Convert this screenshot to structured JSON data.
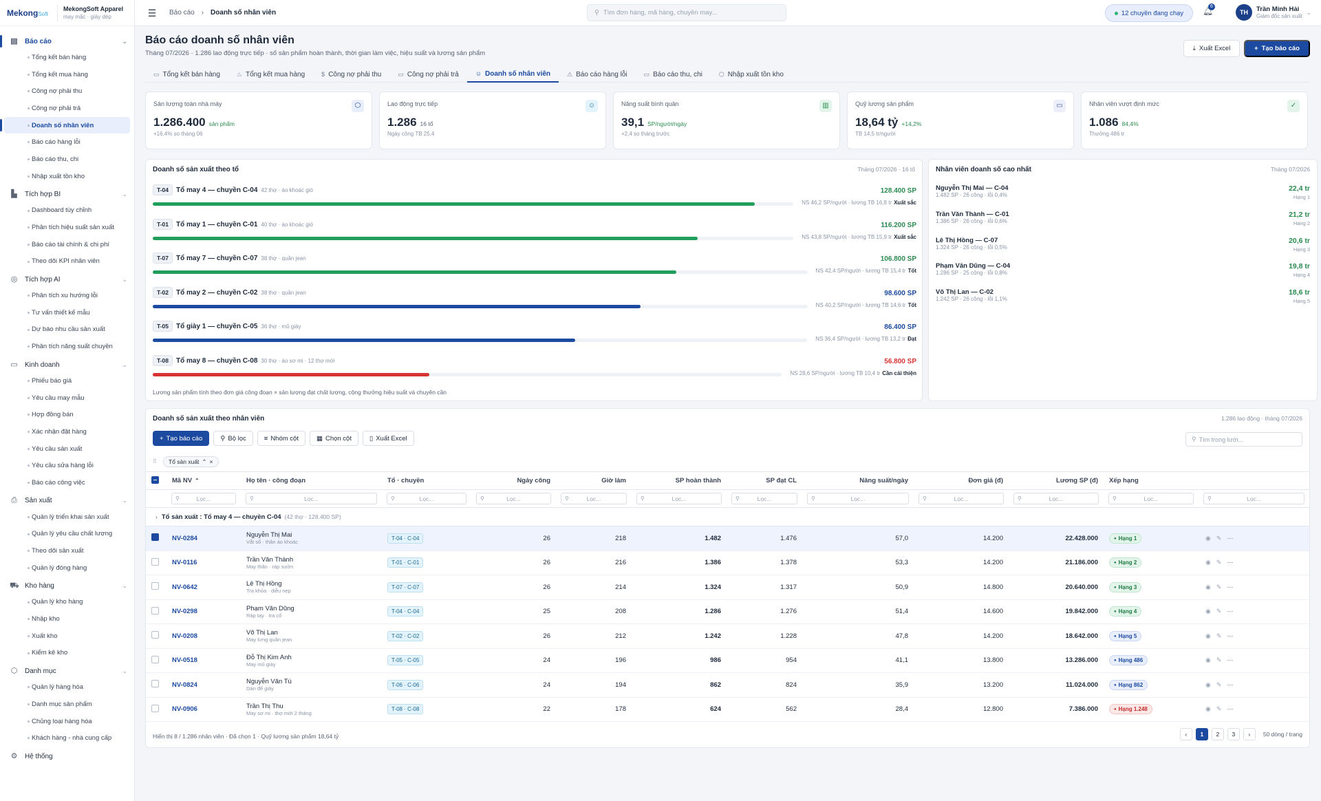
{
  "brand": {
    "logo_main": "Mekong",
    "logo_soft": "Soft",
    "name": "MekongSoft Apparel",
    "sub": "may mặc · giày dép"
  },
  "sidebar": {
    "groups": [
      {
        "label": "Báo cáo",
        "icon": "report-icon",
        "active": true,
        "items": [
          "Tổng kết bán hàng",
          "Tổng kết mua hàng",
          "Công nợ phải thu",
          "Công nợ phải trả",
          "Doanh số nhân viên",
          "Báo cáo hàng lỗi",
          "Báo cáo thu, chi",
          "Nhập xuất tồn kho"
        ],
        "active_item": 4
      },
      {
        "label": "Tích hợp BI",
        "icon": "bar-chart-icon",
        "items": [
          "Dashboard tùy chỉnh",
          "Phân tích hiệu suất sản xuất",
          "Báo cáo tài chính & chi phí",
          "Theo dõi KPI nhân viên"
        ]
      },
      {
        "label": "Tích hợp AI",
        "icon": "ai-check-icon",
        "items": [
          "Phân tích xu hướng lỗi",
          "Tư vấn thiết kế mẫu",
          "Dự báo nhu cầu sản xuất",
          "Phân tích năng suất chuyền"
        ]
      },
      {
        "label": "Kinh doanh",
        "icon": "money-icon",
        "items": [
          "Phiếu báo giá",
          "Yêu cầu may mẫu",
          "Hợp đồng bán",
          "Xác nhận đặt hàng",
          "Yêu cầu sản xuất",
          "Yêu cầu sửa hàng lỗi",
          "Báo cáo công việc"
        ]
      },
      {
        "label": "Sản xuất",
        "icon": "printer-icon",
        "items": [
          "Quản lý triển khai sản xuất",
          "Quản lý yêu cầu chất lượng",
          "Theo dõi sản xuất",
          "Quản lý đóng hàng"
        ]
      },
      {
        "label": "Kho hàng",
        "icon": "truck-icon",
        "items": [
          "Quản lý kho hàng",
          "Nhập kho",
          "Xuất kho",
          "Kiểm kê kho"
        ]
      },
      {
        "label": "Danh mục",
        "icon": "box-icon",
        "items": [
          "Quản lý hàng hóa",
          "Danh mục sản phẩm",
          "Chủng loại hàng hóa",
          "Khách hàng - nhà cung cấp"
        ]
      },
      {
        "label": "Hệ thống",
        "icon": "gear-icon",
        "items": []
      }
    ]
  },
  "topbar": {
    "breadcrumb_root": "Báo cáo",
    "breadcrumb_current": "Doanh số nhân viên",
    "search_placeholder": "Tìm đơn hàng, mã hàng, chuyền may...",
    "status_pill": "12 chuyền đang chạy",
    "notif_count": "6",
    "user_initials": "TH",
    "user_name": "Trần Minh Hải",
    "user_role": "Giám đốc sản xuất"
  },
  "page": {
    "title": "Báo cáo doanh số nhân viên",
    "subtitle": "Tháng 07/2026 · 1.286 lao động trực tiếp · số sản phẩm hoàn thành, thời gian làm việc, hiệu suất và lương sản phẩm",
    "btn_excel": "Xuất Excel",
    "btn_new": "Tạo báo cáo"
  },
  "tabs": [
    {
      "label": "Tổng kết bán hàng",
      "icon": "▭"
    },
    {
      "label": "Tổng kết mua hàng",
      "icon": "♨"
    },
    {
      "label": "Công nợ phải thu",
      "icon": "$"
    },
    {
      "label": "Công nợ phải trả",
      "icon": "▭"
    },
    {
      "label": "Doanh số nhân viên",
      "icon": "☺",
      "active": true
    },
    {
      "label": "Báo cáo hàng lỗi",
      "icon": "⚠"
    },
    {
      "label": "Báo cáo thu, chi",
      "icon": "▭"
    },
    {
      "label": "Nhập xuất tồn kho",
      "icon": "⬡"
    }
  ],
  "kpis": [
    {
      "label": "Sản lượng toàn nhà máy",
      "value": "1.286.400",
      "unit": "sản phẩm",
      "unit_color": "#2a8a4f",
      "note": "+16,4% so tháng 06",
      "icon": "⬡",
      "icon_bg": "#e8eefb",
      "icon_color": "#1c4aa0"
    },
    {
      "label": "Lao động trực tiếp",
      "value": "1.286",
      "unit": "16 tổ",
      "unit_color": "#5a6475",
      "note": "Ngày công TB 25,4",
      "icon": "☺",
      "icon_bg": "#e3f3fb",
      "icon_color": "#1e6a94"
    },
    {
      "label": "Năng suất bình quân",
      "value": "39,1",
      "unit": "SP/người/ngày",
      "unit_color": "#2a8a4f",
      "note": "+2,4 so tháng trước",
      "icon": "▥",
      "icon_bg": "#e3f5ea",
      "icon_color": "#2a8a4f"
    },
    {
      "label": "Quỹ lương sản phẩm",
      "value": "18,64 tỷ",
      "unit": "+14,2%",
      "unit_color": "#2a8a4f",
      "note": "TB 14,5 tr/người",
      "icon": "▭",
      "icon_bg": "#eceffa",
      "icon_color": "#4a5aa0"
    },
    {
      "label": "Nhân viên vượt định mức",
      "value": "1.086",
      "unit": "84,4%",
      "unit_color": "#2a8a4f",
      "note": "Thưởng 486 tr",
      "icon": "✓",
      "icon_bg": "#e3f5ea",
      "icon_color": "#2a8a4f"
    }
  ],
  "teams_panel": {
    "title": "Doanh số sản xuất theo tổ",
    "period": "Tháng 07/2026 · 16 tổ",
    "footnote": "Lương sản phẩm tính theo đơn giá công đoạn × sản lượng đạt chất lượng, cộng thưởng hiệu suất và chuyên cần",
    "teams": [
      {
        "badge": "T-04",
        "name": "Tổ may 4 — chuyền C-04",
        "meta": "42 thợ · áo khoác gió",
        "value": "128.400 SP",
        "value_color": "#2a8a4f",
        "progress": 0.94,
        "bar_color": "#1f9e5c",
        "ns": "NS 46,2 SP/người · lương TB 16,8 tr",
        "rating": "Xuất sắc"
      },
      {
        "badge": "T-01",
        "name": "Tổ may 1 — chuyền C-01",
        "meta": "40 thợ · áo khoác gió",
        "value": "116.200 SP",
        "value_color": "#2a8a4f",
        "progress": 0.85,
        "bar_color": "#1f9e5c",
        "ns": "NS 43,8 SP/người · lương TB 15,9 tr",
        "rating": "Xuất sắc"
      },
      {
        "badge": "T-07",
        "name": "Tổ may 7 — chuyền C-07",
        "meta": "38 thợ · quần jean",
        "value": "106.800 SP",
        "value_color": "#2a8a4f",
        "progress": 0.8,
        "bar_color": "#1f9e5c",
        "ns": "NS 42,4 SP/người · lương TB 15,4 tr",
        "rating": "Tốt"
      },
      {
        "badge": "T-02",
        "name": "Tổ may 2 — chuyền C-02",
        "meta": "38 thợ · quần jean",
        "value": "98.600 SP",
        "value_color": "#1c4aa0",
        "progress": 0.745,
        "bar_color": "#1c4aa0",
        "ns": "NS 40,2 SP/người · lương TB 14,6 tr",
        "rating": "Tốt"
      },
      {
        "badge": "T-05",
        "name": "Tổ giày 1 — chuyền C-05",
        "meta": "36 thợ · mũ giày",
        "value": "86.400 SP",
        "value_color": "#1c4aa0",
        "progress": 0.645,
        "bar_color": "#1c4aa0",
        "ns": "NS 36,4 SP/người · lương TB 13,2 tr",
        "rating": "Đạt"
      },
      {
        "badge": "T-08",
        "name": "Tổ may 8 — chuyền C-08",
        "meta": "30 thợ · áo sơ mi · 12 thợ mới",
        "value": "56.800 SP",
        "value_color": "#d63333",
        "progress": 0.44,
        "bar_color": "#d63333",
        "ns": "NS 28,6 SP/người · lương TB 10,4 tr",
        "rating": "Cần cải thiện"
      }
    ]
  },
  "top_panel": {
    "title": "Nhân viên doanh số cao nhất",
    "period": "Tháng 07/2026",
    "rows": [
      {
        "name": "Nguyễn Thị Mai — C-04",
        "meta": "1.482 SP · 26 công · lỗi 0,4%",
        "value": "22,4 tr",
        "rank": "Hạng 1"
      },
      {
        "name": "Trần Văn Thành — C-01",
        "meta": "1.386 SP · 26 công · lỗi 0,6%",
        "value": "21,2 tr",
        "rank": "Hạng 2"
      },
      {
        "name": "Lê Thị Hồng — C-07",
        "meta": "1.324 SP · 26 công · lỗi 0,5%",
        "value": "20,6 tr",
        "rank": "Hạng 3"
      },
      {
        "name": "Phạm Văn Dũng — C-04",
        "meta": "1.286 SP · 25 công · lỗi 0,8%",
        "value": "19,8 tr",
        "rank": "Hạng 4"
      },
      {
        "name": "Võ Thị Lan — C-02",
        "meta": "1.242 SP · 26 công · lỗi 1,1%",
        "value": "18,6 tr",
        "rank": "Hạng 5"
      }
    ]
  },
  "grid": {
    "title": "Doanh số sản xuất theo nhân viên",
    "period": "1.286 lao động · tháng 07/2026",
    "toolbar": {
      "create": "Tạo báo cáo",
      "filter": "Bộ lọc",
      "group": "Nhóm cột",
      "columns": "Chọn cột",
      "export": "Xuất Excel"
    },
    "search_placeholder": "Tìm trong lưới...",
    "group_chip": "Tổ sản xuất",
    "filter_placeholder": "Lọc...",
    "columns": [
      "Mã NV",
      "Họ tên · công đoạn",
      "Tổ · chuyền",
      "Ngày công",
      "Giờ làm",
      "SP hoàn thành",
      "SP đạt CL",
      "Năng suất/ngày",
      "Đơn giá (đ)",
      "Lương SP (đ)",
      "Xếp hạng"
    ],
    "group_row_label": "Tổ sản xuất : Tổ may 4 — chuyền C-04",
    "group_row_meta": "(42 thợ · 128.400 SP)",
    "rows": [
      {
        "code": "NV-0284",
        "name": "Nguyễn Thị Mai",
        "stage": "Vắt sổ · thân áo khoác",
        "team": "T-04 · C-04",
        "days": "26",
        "hours": "218",
        "done": "1.482",
        "ok": "1.476",
        "perday": "57,0",
        "price": "14.200",
        "salary": "22.428.000",
        "rank": "Hạng 1",
        "rank_kind": "green",
        "selected": true
      },
      {
        "code": "NV-0116",
        "name": "Trần Văn Thành",
        "stage": "May thân · ráp sườn",
        "team": "T-01 · C-01",
        "days": "26",
        "hours": "216",
        "done": "1.386",
        "ok": "1.378",
        "perday": "53,3",
        "price": "14.200",
        "salary": "21.186.000",
        "rank": "Hạng 2",
        "rank_kind": "green"
      },
      {
        "code": "NV-0642",
        "name": "Lê Thị Hồng",
        "stage": "Tra khóa · diễu nẹp",
        "team": "T-07 · C-07",
        "days": "26",
        "hours": "214",
        "done": "1.324",
        "ok": "1.317",
        "perday": "50,9",
        "price": "14.800",
        "salary": "20.640.000",
        "rank": "Hạng 3",
        "rank_kind": "green"
      },
      {
        "code": "NV-0298",
        "name": "Phạm Văn Dũng",
        "stage": "Ráp tay · tra cổ",
        "team": "T-04 · C-04",
        "days": "25",
        "hours": "208",
        "done": "1.286",
        "ok": "1.276",
        "perday": "51,4",
        "price": "14.600",
        "salary": "19.842.000",
        "rank": "Hạng 4",
        "rank_kind": "green"
      },
      {
        "code": "NV-0208",
        "name": "Võ Thị Lan",
        "stage": "May lưng quần jean",
        "team": "T-02 · C-02",
        "days": "26",
        "hours": "212",
        "done": "1.242",
        "ok": "1.228",
        "perday": "47,8",
        "price": "14.200",
        "salary": "18.642.000",
        "rank": "Hạng 5",
        "rank_kind": "blue"
      },
      {
        "code": "NV-0518",
        "name": "Đỗ Thị Kim Anh",
        "stage": "May mũ giày",
        "team": "T-05 · C-05",
        "days": "24",
        "hours": "196",
        "done": "986",
        "ok": "954",
        "perday": "41,1",
        "price": "13.800",
        "salary": "13.286.000",
        "rank": "Hạng 486",
        "rank_kind": "blue"
      },
      {
        "code": "NV-0824",
        "name": "Nguyễn Văn Tú",
        "stage": "Dán đế giày",
        "team": "T-06 · C-06",
        "days": "24",
        "hours": "194",
        "done": "862",
        "ok": "824",
        "perday": "35,9",
        "price": "13.200",
        "salary": "11.024.000",
        "rank": "Hạng 862",
        "rank_kind": "blue"
      },
      {
        "code": "NV-0906",
        "name": "Trần Thị Thu",
        "stage": "May sơ mi · thợ mới 2 tháng",
        "team": "T-08 · C-08",
        "days": "22",
        "hours": "178",
        "done": "624",
        "ok": "562",
        "perday": "28,4",
        "price": "12.800",
        "salary": "7.386.000",
        "rank": "Hạng 1.248",
        "rank_kind": "red"
      }
    ],
    "footer": "Hiển thị 8 / 1.286 nhân viên · Đã chọn 1 · Quỹ lương sản phẩm 18,64 tỷ",
    "pages": [
      "1",
      "2",
      "3"
    ],
    "per_page": "50 dòng / trang"
  }
}
